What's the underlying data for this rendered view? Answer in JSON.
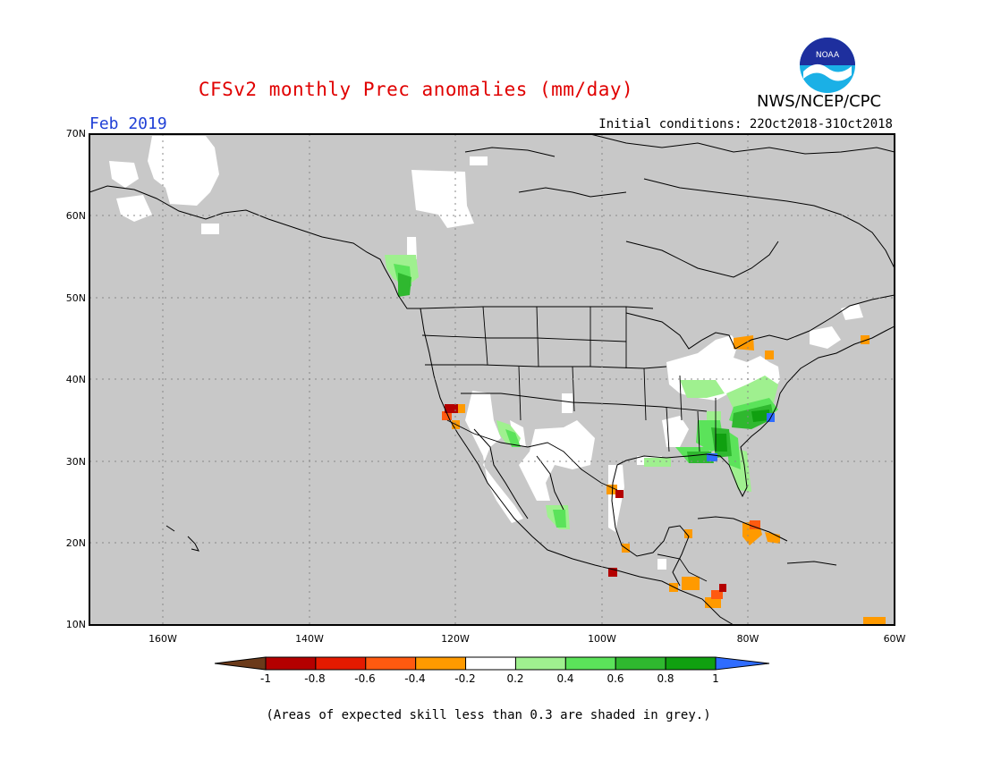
{
  "title": "CFSv2 monthly Prec anomalies (mm/day)",
  "org": "NWS/NCEP/CPC",
  "logo_text": "NOAA",
  "month": "Feb 2019",
  "initial_conditions": "Initial conditions: 22Oct2018-31Oct2018",
  "map": {
    "lat_labels": [
      "70N",
      "60N",
      "50N",
      "40N",
      "30N",
      "20N",
      "10N"
    ],
    "lon_labels": [
      "160W",
      "140W",
      "120W",
      "100W",
      "80W",
      "60W"
    ],
    "extent": {
      "lon_min": -170,
      "lon_max": -60,
      "lat_min": 10,
      "lat_max": 70
    },
    "background_color": "#c8c8c8"
  },
  "colorbar": {
    "labels": [
      "-1",
      "-0.8",
      "-0.6",
      "-0.4",
      "-0.2",
      "0.2",
      "0.4",
      "0.6",
      "0.8",
      "1"
    ],
    "colors": [
      "#6b3a1a",
      "#b40000",
      "#e41a00",
      "#ff5a10",
      "#ff9a00",
      "#ffffff",
      "#9ff08f",
      "#5be35a",
      "#2fb82f",
      "#10a010",
      "#2f6cff"
    ]
  },
  "note": "(Areas of expected skill less than 0.3 are shaded in grey.)"
}
